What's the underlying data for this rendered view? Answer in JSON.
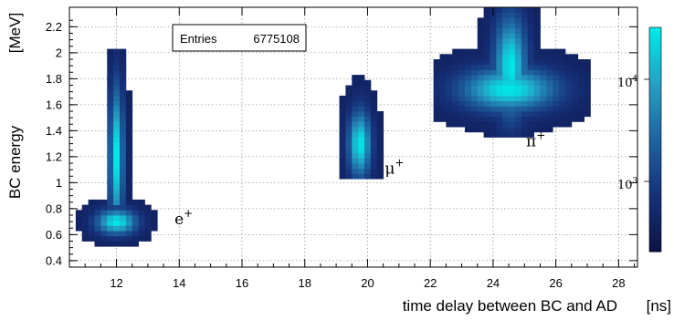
{
  "chart_data": {
    "type": "heatmap",
    "xlabel": "time delay between BC and AD",
    "xlabel_unit": "[ns]",
    "ylabel": "BC energy",
    "ylabel_unit": "[MeV]",
    "xlim": [
      10.5,
      28.6
    ],
    "ylim": [
      0.35,
      2.35
    ],
    "xticks": [
      12,
      14,
      16,
      18,
      20,
      22,
      24,
      26,
      28
    ],
    "yticks": [
      0.4,
      0.6,
      0.8,
      1.0,
      1.2,
      1.4,
      1.6,
      1.8,
      2.0,
      2.2
    ],
    "ytick_labels": [
      "0.4",
      "0.6",
      "0.8",
      "1",
      "1.2",
      "1.4",
      "1.6",
      "1.8",
      "2",
      "2.2"
    ],
    "grid": true,
    "stats_box": {
      "label": "Entries",
      "value": "6775108"
    },
    "colorbar": {
      "scale": "log",
      "labels": [
        {
          "base": "10",
          "exp": "3"
        },
        {
          "base": "10",
          "exp": "4"
        }
      ]
    },
    "annotations": [
      {
        "base": "e",
        "sup": "+",
        "x": 13.85,
        "y": 0.68
      },
      {
        "base": "μ",
        "sup": "+",
        "x": 20.55,
        "y": 1.07
      },
      {
        "base": "π",
        "sup": "+",
        "x": 25.05,
        "y": 1.28
      }
    ],
    "clusters": [
      {
        "name": "e+",
        "peak_x": 12.0,
        "peak_y": 0.65,
        "peak_counts": 40000,
        "regions": [
          {
            "cx": 12.0,
            "cy": 0.7,
            "sx": 0.5,
            "sy": 0.075,
            "x0": 10.75,
            "x1": 13.6,
            "y0": 0.5,
            "y1": 0.86
          },
          {
            "cx": 12.0,
            "cy": 1.2,
            "sx": 0.17,
            "sy": 0.42,
            "x0": 11.6,
            "x1": 12.4,
            "y0": 0.85,
            "y1": 2.02
          }
        ]
      },
      {
        "name": "mu+",
        "peak_x": 19.7,
        "peak_y": 1.2,
        "peak_counts": 25000,
        "regions": [
          {
            "cx": 19.75,
            "cy": 1.3,
            "sx": 0.28,
            "sy": 0.2,
            "x0": 19.0,
            "x1": 20.5,
            "y0": 1.02,
            "y1": 1.92
          }
        ]
      },
      {
        "name": "pi+",
        "peak_x": 24.5,
        "peak_y": 1.75,
        "peak_counts": 60000,
        "regions": [
          {
            "cx": 24.5,
            "cy": 1.72,
            "sx": 1.2,
            "sy": 0.13,
            "x0": 22.0,
            "x1": 27.0,
            "y0": 1.36,
            "y1": 2.36
          },
          {
            "cx": 24.55,
            "cy": 1.9,
            "sx": 0.4,
            "sy": 0.3,
            "x0": 23.3,
            "x1": 25.8,
            "y0": 1.36,
            "y1": 2.36
          }
        ]
      }
    ]
  }
}
